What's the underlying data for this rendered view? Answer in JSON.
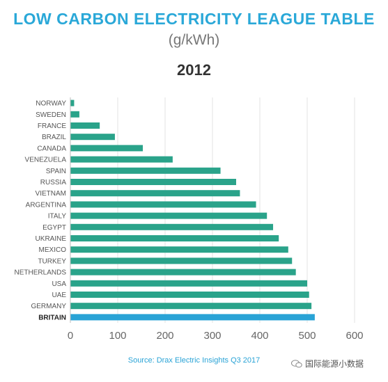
{
  "header": {
    "title": "LOW CARBON ELECTRICITY LEAGUE TABLE",
    "unit": "(g/kWh)",
    "year": "2012"
  },
  "footer": {
    "source": "Source: Drax Electric Insights Q3 2017",
    "watermark": "国际能源小数据"
  },
  "colors": {
    "bar": "#2aa38a",
    "highlight": "#29a3d6",
    "title": "#2aa8d8",
    "grid": "#e3e3e3"
  },
  "chart_data": {
    "type": "bar",
    "orientation": "horizontal",
    "title": "LOW CARBON ELECTRICITY LEAGUE TABLE",
    "subtitle": "(g/kWh)",
    "xlim": [
      0,
      600
    ],
    "xticks": [
      0,
      100,
      200,
      300,
      400,
      500,
      600
    ],
    "grid": true,
    "highlight": "BRITAIN",
    "categories": [
      "NORWAY",
      "SWEDEN",
      "FRANCE",
      "BRAZIL",
      "CANADA",
      "VENEZUELA",
      "SPAIN",
      "RUSSIA",
      "VIETNAM",
      "ARGENTINA",
      "ITALY",
      "EGYPT",
      "UKRAINE",
      "MEXICO",
      "TURKEY",
      "NETHERLANDS",
      "USA",
      "UAE",
      "GERMANY",
      "BRITAIN"
    ],
    "values": [
      8,
      19,
      62,
      94,
      153,
      216,
      317,
      350,
      358,
      392,
      415,
      428,
      440,
      460,
      468,
      476,
      500,
      504,
      509,
      516
    ]
  }
}
